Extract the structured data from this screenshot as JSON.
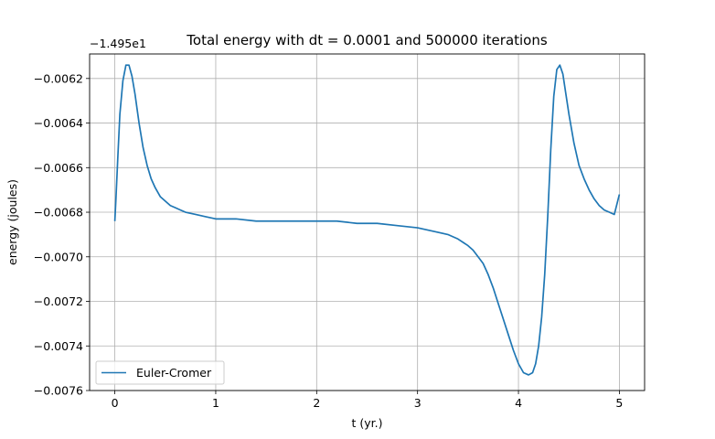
{
  "chart_data": {
    "type": "line",
    "title": "Total energy with dt = 0.0001 and 500000 iterations",
    "xlabel": "t (yr.)",
    "ylabel": "energy (joules)",
    "offset_text": "−1.495e1",
    "xlim": [
      -0.25,
      5.25
    ],
    "ylim": [
      -0.0076,
      -0.00609
    ],
    "x_ticks": [
      0,
      1,
      2,
      3,
      4,
      5
    ],
    "x_tick_labels": [
      "0",
      "1",
      "2",
      "3",
      "4",
      "5"
    ],
    "y_ticks": [
      -0.0076,
      -0.0074,
      -0.0072,
      -0.007,
      -0.0068,
      -0.0066,
      -0.0064,
      -0.0062
    ],
    "y_tick_labels": [
      "−0.0076",
      "−0.0074",
      "−0.0072",
      "−0.0070",
      "−0.0068",
      "−0.0066",
      "−0.0064",
      "−0.0062"
    ],
    "grid": true,
    "legend_position": "lower-left",
    "series": [
      {
        "name": "Euler-Cromer",
        "color": "#1f77b4",
        "x": [
          0,
          0.01,
          0.03,
          0.05,
          0.08,
          0.11,
          0.14,
          0.17,
          0.2,
          0.24,
          0.28,
          0.32,
          0.36,
          0.4,
          0.45,
          0.5,
          0.55,
          0.6,
          0.65,
          0.7,
          0.8,
          0.9,
          1.0,
          1.1,
          1.2,
          1.4,
          1.6,
          1.8,
          2.0,
          2.2,
          2.4,
          2.6,
          2.8,
          3.0,
          3.2,
          3.3,
          3.4,
          3.5,
          3.55,
          3.6,
          3.65,
          3.7,
          3.75,
          3.8,
          3.85,
          3.9,
          3.95,
          4.0,
          4.05,
          4.1,
          4.14,
          4.17,
          4.2,
          4.23,
          4.26,
          4.29,
          4.32,
          4.35,
          4.38,
          4.41,
          4.44,
          4.47,
          4.5,
          4.55,
          4.6,
          4.65,
          4.7,
          4.75,
          4.8,
          4.85,
          4.9,
          4.95,
          5.0
        ],
        "y": [
          -0.00684,
          -0.00675,
          -0.00655,
          -0.00636,
          -0.00621,
          -0.00614,
          -0.00614,
          -0.00619,
          -0.00627,
          -0.0064,
          -0.00651,
          -0.00659,
          -0.00665,
          -0.00669,
          -0.00673,
          -0.00675,
          -0.00677,
          -0.00678,
          -0.00679,
          -0.0068,
          -0.00681,
          -0.00682,
          -0.00683,
          -0.00683,
          -0.00683,
          -0.00684,
          -0.00684,
          -0.00684,
          -0.00684,
          -0.00684,
          -0.00685,
          -0.00685,
          -0.00686,
          -0.00687,
          -0.00689,
          -0.0069,
          -0.00692,
          -0.00695,
          -0.00697,
          -0.007,
          -0.00703,
          -0.00708,
          -0.00714,
          -0.00721,
          -0.00728,
          -0.00735,
          -0.00742,
          -0.00748,
          -0.00752,
          -0.00753,
          -0.00752,
          -0.00748,
          -0.0074,
          -0.00727,
          -0.00708,
          -0.00682,
          -0.00652,
          -0.00628,
          -0.00616,
          -0.00614,
          -0.00618,
          -0.00627,
          -0.00636,
          -0.00649,
          -0.00659,
          -0.00665,
          -0.0067,
          -0.00674,
          -0.00677,
          -0.00679,
          -0.0068,
          -0.00681,
          -0.00672
        ]
      }
    ]
  }
}
